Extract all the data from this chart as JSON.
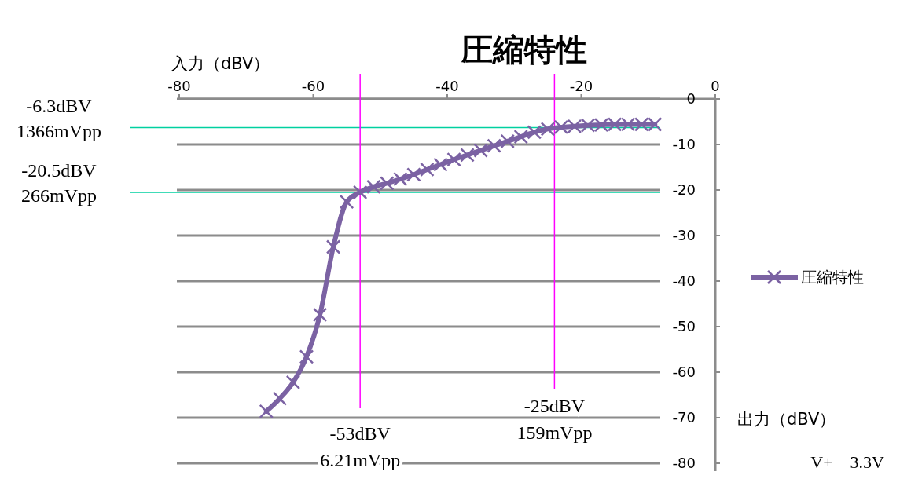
{
  "chart_data": {
    "type": "line",
    "title": "圧縮特性",
    "xlabel": "入力（dBV）",
    "ylabel": "出力（dBV）",
    "x": [
      -67,
      -65,
      -63,
      -61,
      -59,
      -57,
      -55,
      -53,
      -51,
      -49,
      -47,
      -45,
      -43,
      -41,
      -39,
      -37,
      -35,
      -33,
      -31,
      -29,
      -27,
      -25,
      -23,
      -21,
      -19,
      -17,
      -15,
      -13,
      -11,
      -9
    ],
    "series": [
      {
        "name": "圧縮特性",
        "color": "#7b62a3",
        "values": [
          -68.6,
          -65.8,
          -62.2,
          -56.6,
          -47.4,
          -32.5,
          -22.6,
          -20.5,
          -19.3,
          -18.5,
          -17.6,
          -16.6,
          -15.5,
          -14.4,
          -13.3,
          -12.3,
          -11.3,
          -10.3,
          -9.3,
          -8.3,
          -7.3,
          -6.6,
          -6.2,
          -6.0,
          -5.8,
          -5.7,
          -5.6,
          -5.6,
          -5.6,
          -5.6
        ]
      }
    ],
    "xlim": [
      -80,
      0
    ],
    "xticks": [
      -80,
      -60,
      -40,
      -20,
      0
    ],
    "ylim": [
      -80,
      0
    ],
    "yticks": [
      0,
      -10,
      -20,
      -30,
      -40,
      -50,
      -60,
      -70,
      -80
    ],
    "grid": "y",
    "legend": "right",
    "marker": "cross",
    "line_style": "solid",
    "ref_lines": [
      {
        "axis": "y",
        "value": -6.3,
        "label": "-6.3dBV\n1366mVpp",
        "color": "#00d0a0"
      },
      {
        "axis": "y",
        "value": -20.5,
        "label": "-20.5dBV\n266mVpp",
        "color": "#00d0a0"
      },
      {
        "axis": "x",
        "value": -53,
        "label": "-53dBV\n6.21mVpp",
        "color": "#ff00ff"
      },
      {
        "axis": "x",
        "value": -24,
        "label": "-25dBV\n159mVpp",
        "color": "#ff00ff"
      }
    ],
    "annotations": [
      "V+　3.3V"
    ]
  }
}
